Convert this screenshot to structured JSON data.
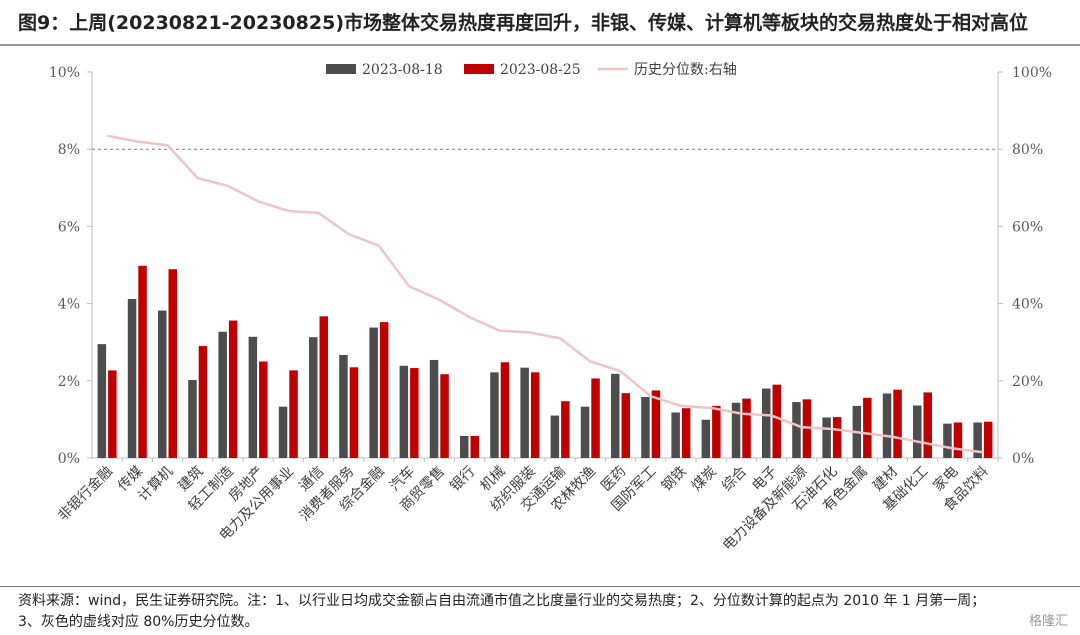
{
  "header": {
    "title": "图9：上周(20230821-20230825)市场整体交易热度再度回升，非银、传媒、计算机等板块的交易热度处于相对高位"
  },
  "footer": {
    "line1": "资料来源：wind，民生证券研究院。注：1、以行业日均成交金额占自由流通市值之比度量行业的交易热度；2、分位数计算的起点为 2010 年 1 月第一周；",
    "line2": "3、灰色的虚线对应 80%历史分位数。"
  },
  "watermark": "格隆汇",
  "chart_data": {
    "type": "bar",
    "categories": [
      "非银行金融",
      "传媒",
      "计算机",
      "建筑",
      "轻工制造",
      "房地产",
      "电力及公用事业",
      "通信",
      "消费者服务",
      "综合金融",
      "汽车",
      "商贸零售",
      "银行",
      "机械",
      "纺织服装",
      "交通运输",
      "农林牧渔",
      "医药",
      "国防军工",
      "钢铁",
      "煤炭",
      "综合",
      "电子",
      "电力设备及新能源",
      "石油石化",
      "有色金属",
      "建材",
      "基础化工",
      "家电",
      "食品饮料"
    ],
    "series": [
      {
        "name": "2023-08-18",
        "axis": "left",
        "color": "#4d4d4d",
        "values": [
          2.95,
          4.12,
          3.82,
          2.02,
          3.27,
          3.14,
          1.33,
          3.13,
          2.67,
          3.38,
          2.39,
          2.54,
          0.57,
          2.22,
          2.34,
          1.1,
          1.33,
          2.18,
          1.58,
          1.18,
          0.99,
          1.43,
          1.8,
          1.45,
          1.05,
          1.35,
          1.67,
          1.36,
          0.89,
          0.92
        ]
      },
      {
        "name": "2023-08-25",
        "axis": "left",
        "color": "#c00000",
        "values": [
          2.27,
          4.98,
          4.89,
          2.9,
          3.56,
          2.5,
          2.27,
          3.67,
          2.35,
          3.52,
          2.33,
          2.17,
          0.57,
          2.48,
          2.22,
          1.47,
          2.06,
          1.68,
          1.75,
          1.29,
          1.35,
          1.54,
          1.9,
          1.52,
          1.06,
          1.56,
          1.77,
          1.7,
          0.92,
          0.94
        ]
      },
      {
        "name": "历史分位数:右轴",
        "axis": "right",
        "type": "line",
        "color": "#efc4c4",
        "values": [
          83.5,
          82.0,
          81.0,
          72.5,
          70.5,
          66.5,
          64.0,
          63.5,
          58.0,
          55.0,
          44.5,
          41.0,
          36.5,
          33.0,
          32.5,
          31.0,
          25.0,
          22.5,
          16.0,
          13.5,
          13.0,
          11.5,
          11.0,
          8.0,
          7.5,
          6.5,
          5.5,
          4.0,
          2.5,
          1.5
        ]
      }
    ],
    "reference_line": {
      "axis": "right",
      "value": 80,
      "style": "dashed",
      "color": "#7f7f7f"
    },
    "ylim": [
      0,
      10
    ],
    "y_ticks": [
      "0%",
      "2%",
      "4%",
      "6%",
      "8%",
      "10%"
    ],
    "y2lim": [
      0,
      100
    ],
    "y2_ticks": [
      "0%",
      "20%",
      "40%",
      "60%",
      "80%",
      "100%"
    ],
    "legend": {
      "position": "top-center"
    },
    "grid": false
  }
}
